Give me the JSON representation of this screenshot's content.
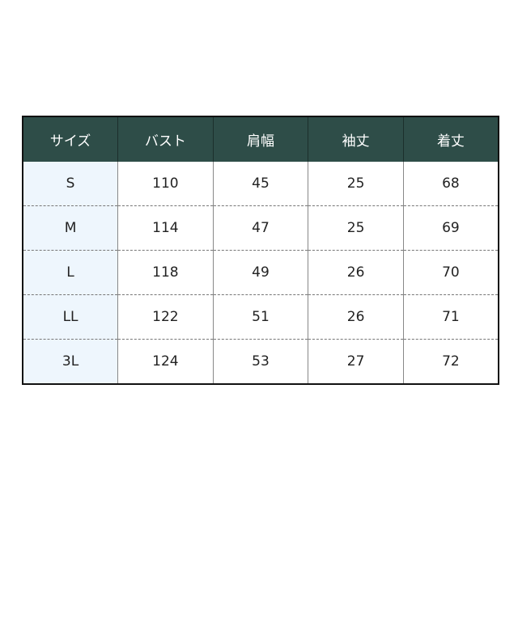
{
  "colors": {
    "header_bg": "#2e4d48",
    "size_col_bg": "#eef6fd"
  },
  "table": {
    "headers": [
      "サイズ",
      "バスト",
      "肩幅",
      "袖丈",
      "着丈"
    ],
    "rows": [
      [
        "S",
        "110",
        "45",
        "25",
        "68"
      ],
      [
        "M",
        "114",
        "47",
        "25",
        "69"
      ],
      [
        "L",
        "118",
        "49",
        "26",
        "70"
      ],
      [
        "LL",
        "122",
        "51",
        "26",
        "71"
      ],
      [
        "3L",
        "124",
        "53",
        "27",
        "72"
      ]
    ]
  }
}
